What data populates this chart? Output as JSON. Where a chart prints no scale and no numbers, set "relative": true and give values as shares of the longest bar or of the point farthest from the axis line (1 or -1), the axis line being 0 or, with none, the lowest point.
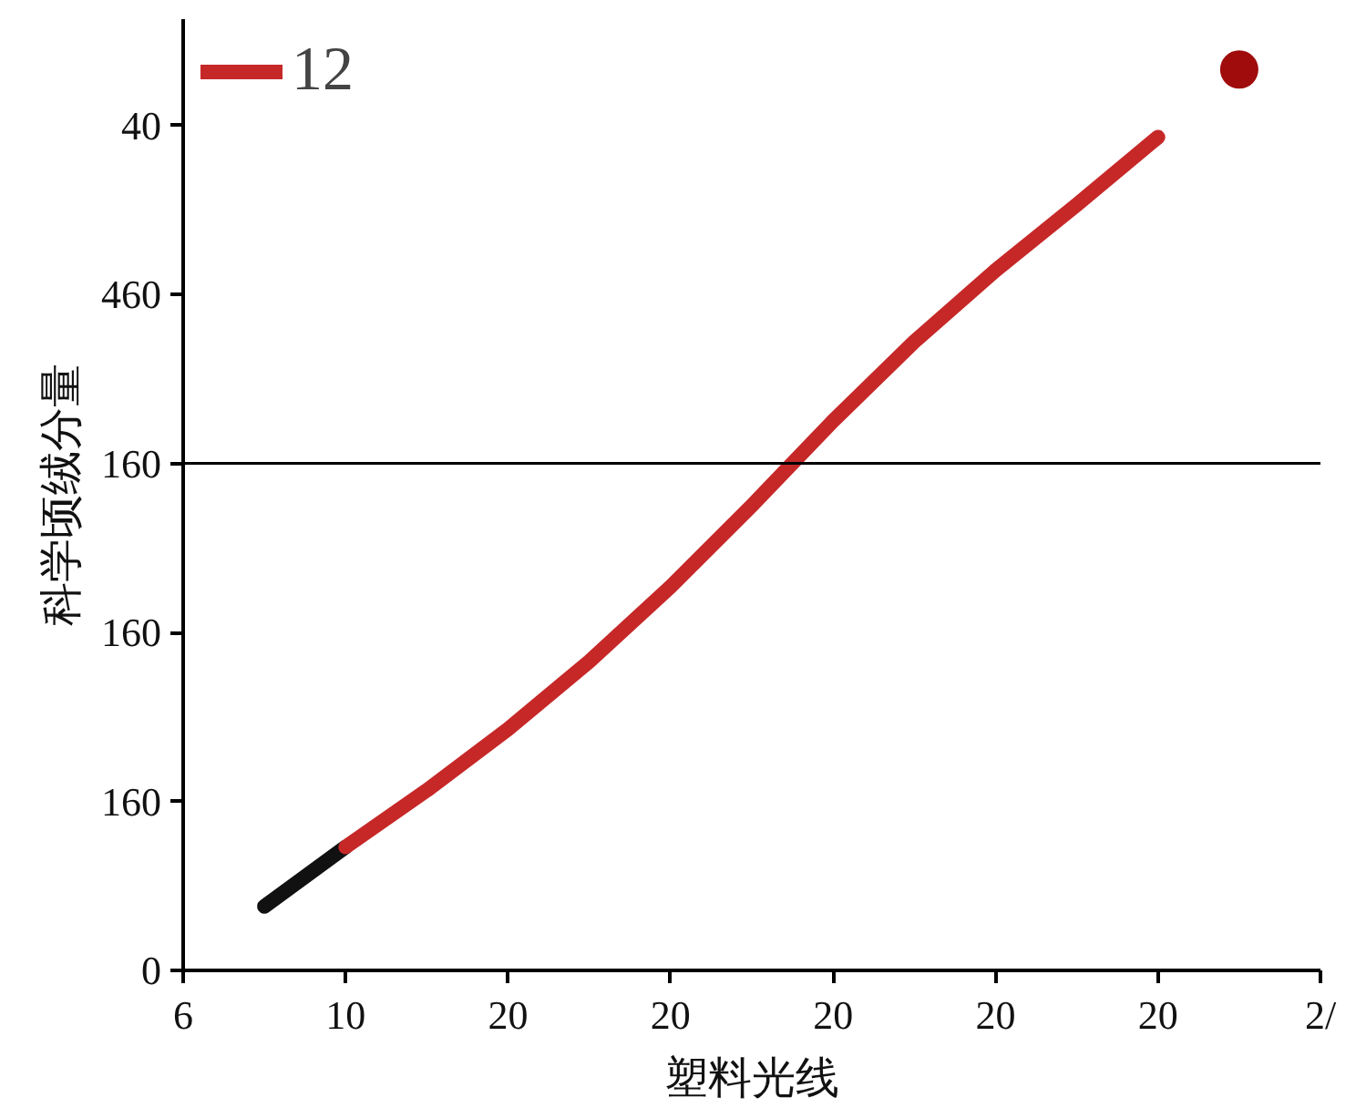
{
  "chart_data": {
    "type": "line",
    "relative": true,
    "xlabel": "塑料光线",
    "ylabel": "科学顷绒分量",
    "categories": [
      "6",
      null,
      "10",
      null,
      "20",
      null,
      "20",
      null,
      "20",
      null,
      "20",
      null,
      "20",
      null,
      "2/"
    ],
    "series": [
      {
        "color": "#111111",
        "values": [
          null,
          0.071,
          0.137,
          null,
          null,
          null,
          null,
          null,
          null,
          null,
          null,
          null,
          null,
          null,
          null
        ]
      },
      {
        "name": "12",
        "color": "#c62828",
        "values": [
          null,
          null,
          0.137,
          0.2,
          0.268,
          0.343,
          0.426,
          0.516,
          0.61,
          0.698,
          0.777,
          0.85,
          0.925,
          null,
          null
        ]
      },
      {
        "type": "scatter",
        "marker": "circle",
        "color": "#a00c0c",
        "values": [
          null,
          null,
          null,
          null,
          null,
          null,
          null,
          null,
          null,
          null,
          null,
          null,
          null,
          1.0,
          null
        ]
      }
    ],
    "annotations": [
      "0",
      "160",
      "160",
      "160",
      "460",
      "40"
    ],
    "ref_lines": [
      {
        "axis": "y",
        "value": 0.563,
        "color": "#000000"
      }
    ],
    "legend": "top left",
    "grid": false
  }
}
